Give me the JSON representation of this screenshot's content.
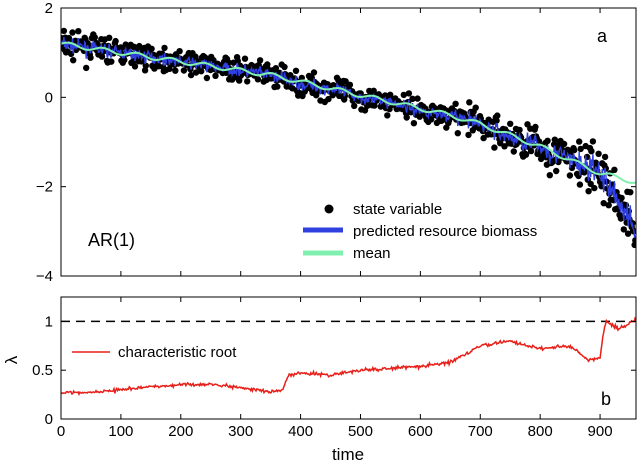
{
  "colors": {
    "state_variable": "#000000",
    "predicted": "#2f3fe0",
    "mean": "#80f0b0",
    "root": "#e8201a",
    "threshold": "#000000"
  },
  "chart_data": [
    {
      "panel_label": "a",
      "model_label": "AR(1)",
      "type": "scatter",
      "xlim": [
        0,
        960
      ],
      "ylim": [
        -4,
        2
      ],
      "xticks": [
        0,
        100,
        200,
        300,
        400,
        500,
        600,
        700,
        800,
        900
      ],
      "yticks": [
        -4,
        -2,
        0,
        2
      ],
      "ytick_labels": [
        "−4",
        "−2",
        "0",
        "2"
      ],
      "grid": false,
      "legend_position": "bottom-right",
      "series": [
        {
          "name": "state variable",
          "type": "scatter",
          "x": [
            0,
            50,
            100,
            150,
            200,
            250,
            300,
            350,
            400,
            450,
            500,
            550,
            600,
            650,
            700,
            750,
            800,
            850,
            900,
            930,
            960
          ],
          "y": [
            1.2,
            1.1,
            1.0,
            0.9,
            0.8,
            0.7,
            0.6,
            0.5,
            0.3,
            0.2,
            0.0,
            -0.1,
            -0.3,
            -0.4,
            -0.6,
            -0.9,
            -1.1,
            -1.4,
            -1.7,
            -2.3,
            -3.0
          ]
        },
        {
          "name": "predicted resource biomass",
          "type": "line",
          "x": [
            0,
            50,
            100,
            150,
            200,
            250,
            300,
            350,
            400,
            450,
            500,
            550,
            600,
            650,
            700,
            750,
            800,
            850,
            900,
            930,
            960
          ],
          "y": [
            1.2,
            1.1,
            1.0,
            0.9,
            0.8,
            0.7,
            0.6,
            0.5,
            0.3,
            0.2,
            0.0,
            -0.1,
            -0.3,
            -0.4,
            -0.6,
            -0.9,
            -1.1,
            -1.4,
            -1.7,
            -2.3,
            -3.0
          ]
        },
        {
          "name": "mean",
          "type": "line",
          "x": [
            0,
            50,
            100,
            150,
            200,
            250,
            300,
            350,
            400,
            450,
            500,
            550,
            600,
            650,
            700,
            750,
            800,
            850,
            900,
            930,
            960
          ],
          "y": [
            1.2,
            1.1,
            1.0,
            0.9,
            0.8,
            0.7,
            0.6,
            0.5,
            0.35,
            0.2,
            0.05,
            -0.1,
            -0.25,
            -0.4,
            -0.6,
            -0.85,
            -1.1,
            -1.4,
            -1.7,
            -1.8,
            -1.9
          ]
        }
      ]
    },
    {
      "panel_label": "b",
      "type": "line",
      "xlabel": "time",
      "ylabel": "λ",
      "xlim": [
        0,
        960
      ],
      "ylim": [
        0,
        1.25
      ],
      "xticks": [
        0,
        100,
        200,
        300,
        400,
        500,
        600,
        700,
        800,
        900
      ],
      "yticks": [
        0,
        0.5,
        1
      ],
      "grid": false,
      "legend_position": "top-left",
      "threshold": 1,
      "series": [
        {
          "name": "characteristic root",
          "x": [
            0,
            50,
            100,
            150,
            200,
            250,
            300,
            350,
            370,
            380,
            400,
            450,
            500,
            550,
            600,
            650,
            700,
            750,
            800,
            850,
            880,
            900,
            905,
            910,
            930,
            950,
            960
          ],
          "y": [
            0.27,
            0.27,
            0.3,
            0.33,
            0.35,
            0.36,
            0.32,
            0.28,
            0.3,
            0.45,
            0.47,
            0.45,
            0.5,
            0.52,
            0.54,
            0.58,
            0.75,
            0.8,
            0.72,
            0.75,
            0.6,
            0.63,
            0.85,
            1.0,
            0.92,
            0.98,
            1.02
          ]
        }
      ]
    }
  ]
}
